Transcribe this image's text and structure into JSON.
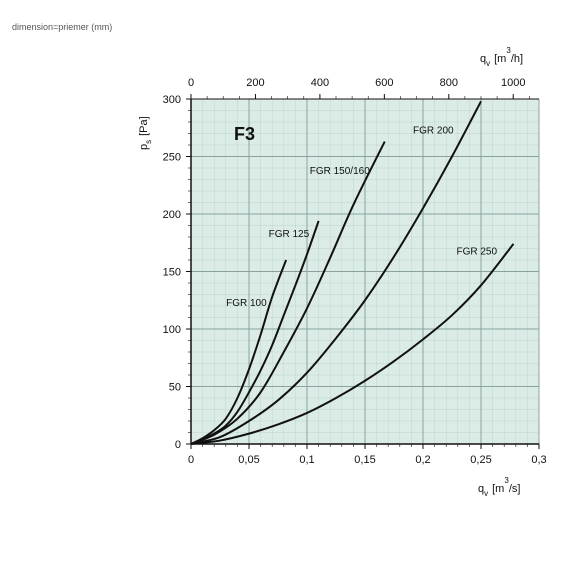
{
  "caption": "dimension=priemer (mm)",
  "colors": {
    "plot_bg": "#dbece7",
    "grid": "#8aa3a0",
    "curve": "#111111",
    "axis": "#111111"
  },
  "chart_data": {
    "type": "line",
    "title": "F3",
    "xlabel": {
      "base": "q",
      "sub": "v",
      "unit_open": "[m",
      "sup": "3",
      "unit_close": "/s]"
    },
    "ylabel": {
      "base": "p",
      "sub": "s",
      "unit": "[Pa]"
    },
    "x2label": {
      "base": "q",
      "sub": "v",
      "unit_open": "[m",
      "sup": "3",
      "unit_close": "/h]"
    },
    "xlim": [
      0,
      0.3
    ],
    "ylim": [
      0,
      300
    ],
    "x2lim": [
      0,
      1080
    ],
    "x_ticks": [
      0,
      0.05,
      0.1,
      0.15,
      0.2,
      0.25,
      0.3
    ],
    "x_tick_labels": [
      "0",
      "0,05",
      "0,1",
      "0,15",
      "0,2",
      "0,25",
      "0,3"
    ],
    "y_ticks": [
      0,
      50,
      100,
      150,
      200,
      250,
      300
    ],
    "y_tick_labels": [
      "0",
      "50",
      "100",
      "150",
      "200",
      "250",
      "300"
    ],
    "x2_ticks": [
      0,
      200,
      400,
      600,
      800,
      1000
    ],
    "x2_tick_labels": [
      "0",
      "200",
      "400",
      "600",
      "800",
      "1000"
    ],
    "grid": true,
    "series": [
      {
        "name": "FGR 100",
        "x": [
          0,
          0.01,
          0.02,
          0.03,
          0.04,
          0.05,
          0.06,
          0.07,
          0.082
        ],
        "y": [
          0,
          5,
          12,
          22,
          40,
          65,
          95,
          128,
          160
        ]
      },
      {
        "name": "FGR 125",
        "x": [
          0,
          0.01,
          0.02,
          0.03,
          0.04,
          0.05,
          0.06,
          0.07,
          0.08,
          0.09,
          0.1,
          0.11
        ],
        "y": [
          0,
          4,
          9,
          16,
          28,
          45,
          64,
          86,
          112,
          138,
          165,
          194
        ]
      },
      {
        "name": "FGR 150/160",
        "x": [
          0,
          0.02,
          0.04,
          0.06,
          0.08,
          0.1,
          0.12,
          0.14,
          0.167
        ],
        "y": [
          0,
          8,
          22,
          45,
          80,
          118,
          162,
          208,
          263
        ]
      },
      {
        "name": "FGR 200",
        "x": [
          0,
          0.025,
          0.05,
          0.075,
          0.1,
          0.125,
          0.15,
          0.175,
          0.2,
          0.225,
          0.25
        ],
        "y": [
          0,
          6,
          20,
          38,
          62,
          92,
          125,
          163,
          205,
          250,
          298
        ]
      },
      {
        "name": "FGR 250",
        "x": [
          0,
          0.025,
          0.05,
          0.075,
          0.1,
          0.125,
          0.15,
          0.175,
          0.2,
          0.225,
          0.25,
          0.278
        ],
        "y": [
          0,
          3,
          9,
          17,
          27,
          40,
          55,
          72,
          91,
          112,
          138,
          174
        ]
      }
    ]
  }
}
